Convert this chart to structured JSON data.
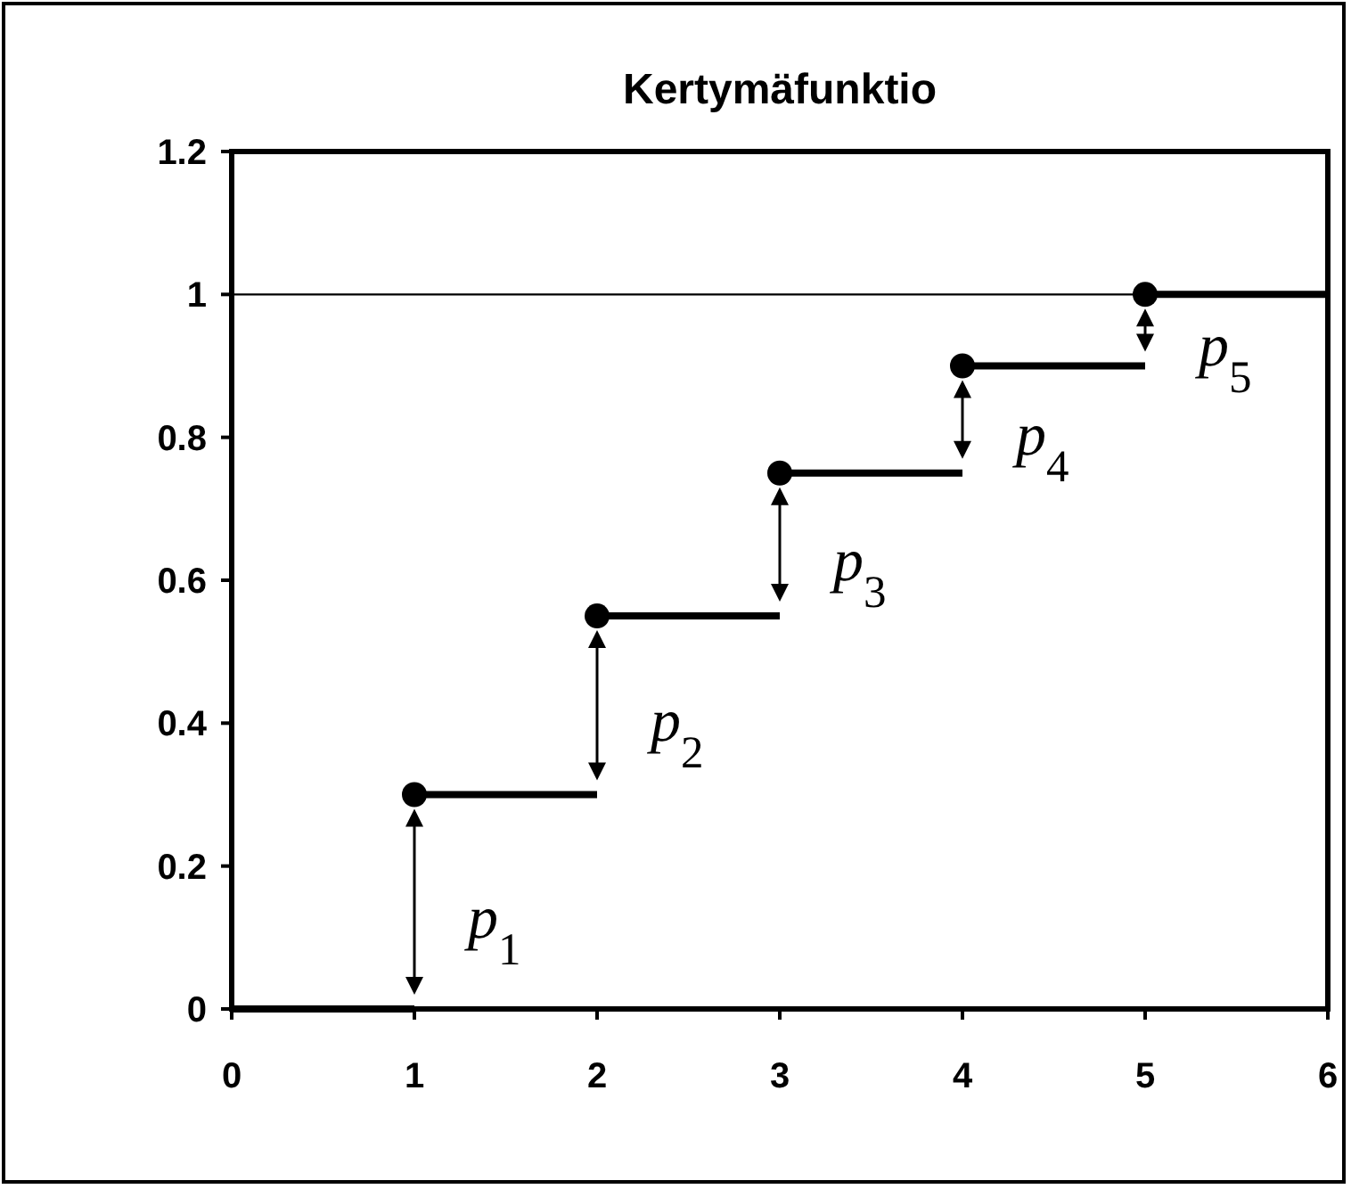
{
  "chart_data": {
    "type": "step",
    "title": "Kertymäfunktio",
    "xlim": [
      0,
      6
    ],
    "xticks": [
      0,
      1,
      2,
      3,
      4,
      5,
      6
    ],
    "ylim": [
      0,
      1.2
    ],
    "yticks": [
      0,
      0.2,
      0.4,
      0.6,
      0.8,
      1,
      1.2
    ],
    "grid": false,
    "series": [
      {
        "color": "#000000",
        "marker": "none",
        "x": [
          0,
          1,
          2,
          3,
          4,
          5,
          6
        ],
        "values": [
          0,
          0.3,
          0.55,
          0.75,
          0.9,
          1,
          1
        ]
      },
      {
        "type": "scatter",
        "color": "#000000",
        "marker": "circle",
        "x": [
          1,
          2,
          3,
          4,
          5
        ],
        "values": [
          0.3,
          0.55,
          0.75,
          0.9,
          1
        ]
      }
    ],
    "ref_lines": [
      {
        "axis": "y",
        "value": 1,
        "color": "#000000"
      }
    ],
    "annotations": [
      "p$_{1}$",
      "p$_{2}$",
      "p$_{3}$",
      "p$_{4}$",
      "p$_{5}$"
    ]
  }
}
